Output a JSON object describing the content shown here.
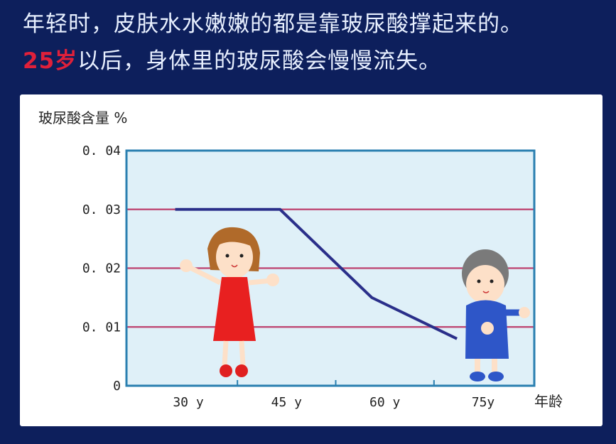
{
  "headline": {
    "line1": "年轻时，皮肤水水嫩嫩的都是靠玻尿酸撑起来的。",
    "line2_highlight": "25岁",
    "line2_rest": "以后，身体里的玻尿酸会慢慢流失。"
  },
  "colors": {
    "background": "#0d1f5c",
    "highlight": "#e0203a",
    "plot_bg": "#dff0f8",
    "frame": "#2a7fb0",
    "grid": "#c0507a",
    "line": "#2a2f8a"
  },
  "chart_data": {
    "type": "line",
    "title": "",
    "ylabel": "玻尿酸含量 %",
    "xlabel": "年龄",
    "ylim": [
      0,
      0.04
    ],
    "yticks": [
      "0",
      "0. 01",
      "0. 02",
      "0. 03",
      "0. 04"
    ],
    "ytick_values": [
      0,
      0.01,
      0.02,
      0.03,
      0.04
    ],
    "xticks": [
      "30 y",
      "45 y",
      "60 y",
      "75y"
    ],
    "xtick_values": [
      30,
      45,
      60,
      75
    ],
    "grid": true,
    "series": [
      {
        "x": [
          28,
          44,
          58,
          71
        ],
        "y": [
          0.03,
          0.03,
          0.015,
          0.008
        ]
      }
    ]
  }
}
